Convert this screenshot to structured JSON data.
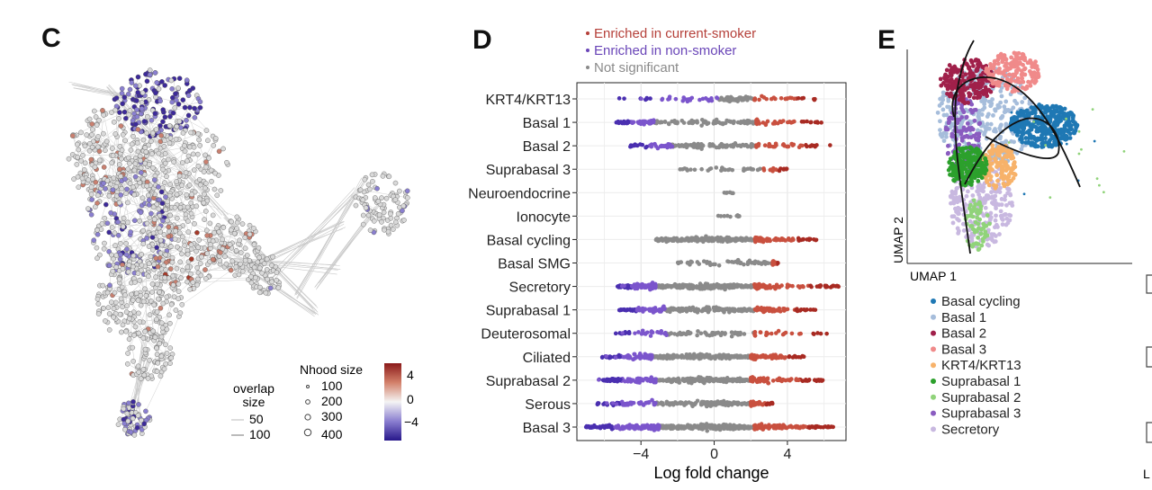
{
  "panels": {
    "c": "C",
    "d": "D",
    "e": "E"
  },
  "panel_c": {
    "overlap_title": "overlap\nsize",
    "overlap_values": [
      "50",
      "100"
    ],
    "nhood_title": "Nhood size",
    "nhood_values": [
      "100",
      "200",
      "300",
      "400"
    ],
    "colorbar_ticks": [
      "4",
      "0",
      "−4"
    ]
  },
  "chart_data": {
    "type": "scatter",
    "title": "",
    "xlabel": "Log fold change",
    "ylabel": "",
    "xlim": [
      -7.5,
      7.2
    ],
    "x_ticks": [
      "−4",
      "0",
      "4"
    ],
    "x_tick_values": [
      -4,
      0,
      4
    ],
    "legend": [
      {
        "label": "Enriched in current-smoker",
        "color": "#b5403a"
      },
      {
        "label": "Enriched in non-smoker",
        "color": "#6a46b8"
      },
      {
        "label": "Not significant",
        "color": "#8a8a8a"
      }
    ],
    "colors": {
      "not_significant": "#8a8a8a",
      "smoker": "#c9503f",
      "nonsmoker": "#7b55cc"
    },
    "categories": [
      {
        "name": "KRT4/KRT13",
        "min": -5.2,
        "max": 5.6,
        "ns_lo": 0.2,
        "ns_hi": 2.2,
        "n": 60
      },
      {
        "name": "Basal 1",
        "min": -5.4,
        "max": 6.1,
        "ns_lo": -3.3,
        "ns_hi": 2.3,
        "n": 90
      },
      {
        "name": "Basal 2",
        "min": -4.6,
        "max": 6.4,
        "ns_lo": -2.3,
        "ns_hi": 2.3,
        "n": 85
      },
      {
        "name": "Suprabasal 3",
        "min": -1.9,
        "max": 4.0,
        "ns_lo": -1.9,
        "ns_hi": 2.6,
        "n": 30
      },
      {
        "name": "Neuroendocrine",
        "min": 0.5,
        "max": 1.1,
        "ns_lo": 0.5,
        "ns_hi": 1.1,
        "n": 6
      },
      {
        "name": "Ionocyte",
        "min": 0.1,
        "max": 1.5,
        "ns_lo": 0.1,
        "ns_hi": 1.5,
        "n": 10
      },
      {
        "name": "Basal cycling",
        "min": -3.2,
        "max": 5.6,
        "ns_lo": -3.2,
        "ns_hi": 2.2,
        "n": 180
      },
      {
        "name": "Basal SMG",
        "min": -2.0,
        "max": 3.5,
        "ns_lo": -2.0,
        "ns_hi": 3.2,
        "n": 50
      },
      {
        "name": "Secretory",
        "min": -5.4,
        "max": 6.8,
        "ns_lo": -3.2,
        "ns_hi": 2.2,
        "n": 220
      },
      {
        "name": "Suprabasal 1",
        "min": -5.3,
        "max": 5.6,
        "ns_lo": -2.7,
        "ns_hi": 2.2,
        "n": 140
      },
      {
        "name": "Deuterosomal",
        "min": -5.6,
        "max": 6.3,
        "ns_lo": -2.6,
        "ns_hi": 2.2,
        "n": 55
      },
      {
        "name": "Ciliated",
        "min": -6.2,
        "max": 5.1,
        "ns_lo": -3.4,
        "ns_hi": 2.0,
        "n": 180
      },
      {
        "name": "Suprabasal 2",
        "min": -6.4,
        "max": 6.1,
        "ns_lo": -3.2,
        "ns_hi": 2.0,
        "n": 200
      },
      {
        "name": "Serous",
        "min": -6.4,
        "max": 3.2,
        "ns_lo": -3.2,
        "ns_hi": 2.0,
        "n": 120
      },
      {
        "name": "Basal 3",
        "min": -7.0,
        "max": 6.5,
        "ns_lo": -3.0,
        "ns_hi": 2.2,
        "n": 320
      }
    ]
  },
  "panel_e": {
    "x_axis": "UMAP 1",
    "y_axis": "UMAP 2",
    "legend": [
      {
        "label": "Basal cycling",
        "color": "#1f78b4"
      },
      {
        "label": "Basal 1",
        "color": "#a6bddb"
      },
      {
        "label": "Basal 2",
        "color": "#a0204a"
      },
      {
        "label": "Basal 3",
        "color": "#f08a8a"
      },
      {
        "label": "KRT4/KRT13",
        "color": "#f7b26a"
      },
      {
        "label": "Suprabasal 1",
        "color": "#2ca02c"
      },
      {
        "label": "Suprabasal 2",
        "color": "#90d37a"
      },
      {
        "label": "Suprabasal 3",
        "color": "#8a5cc0"
      },
      {
        "label": "Secretory",
        "color": "#c8b8e0"
      }
    ]
  },
  "edge_text": "L"
}
